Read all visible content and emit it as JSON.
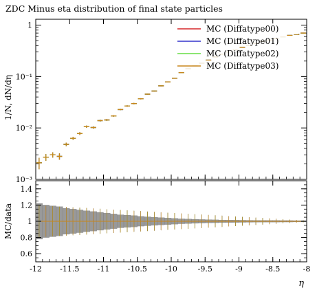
{
  "chart_data": {
    "type": "line",
    "title": "ZDC Minus eta distribution of final state particles",
    "top_panel": {
      "ylabel": "1/N, dN/dη",
      "yscale": "log",
      "ylim": [
        0.001,
        1.3
      ],
      "yticks": [
        {
          "value": 1,
          "label": "1"
        },
        {
          "value": 0.1,
          "label": "10⁻¹"
        },
        {
          "value": 0.01,
          "label": "10⁻²"
        },
        {
          "value": 0.001,
          "label": "10⁻³"
        }
      ]
    },
    "ratio_panel": {
      "ylabel": "MC/data",
      "ylim": [
        0.5,
        1.5
      ],
      "yticks": [
        {
          "value": 0.6,
          "label": "0.6"
        },
        {
          "value": 0.8,
          "label": "0.8"
        },
        {
          "value": 1.0,
          "label": "1"
        },
        {
          "value": 1.2,
          "label": "1.2"
        },
        {
          "value": 1.4,
          "label": "1.4"
        }
      ]
    },
    "xlabel": "η",
    "xlim": [
      -12,
      -8
    ],
    "xticks": [
      {
        "value": -12,
        "label": "-12"
      },
      {
        "value": -11.5,
        "label": "-11.5"
      },
      {
        "value": -11,
        "label": "-11"
      },
      {
        "value": -10.5,
        "label": "-10.5"
      },
      {
        "value": -10,
        "label": "-10"
      },
      {
        "value": -9.5,
        "label": "-9.5"
      },
      {
        "value": -9,
        "label": "-9"
      },
      {
        "value": -8.5,
        "label": "-8.5"
      },
      {
        "value": -8,
        "label": "-8"
      }
    ],
    "bin_width": 0.1,
    "x": [
      -11.95,
      -11.85,
      -11.75,
      -11.65,
      -11.55,
      -11.45,
      -11.35,
      -11.25,
      -11.15,
      -11.05,
      -10.95,
      -10.85,
      -10.75,
      -10.65,
      -10.55,
      -10.45,
      -10.35,
      -10.25,
      -10.15,
      -10.05,
      -9.95,
      -9.85,
      -9.75,
      -9.65,
      -9.55,
      -9.45,
      -9.35,
      -9.25,
      -9.15,
      -9.05,
      -8.95,
      -8.85,
      -8.75,
      -8.65,
      -8.55,
      -8.45,
      -8.35,
      -8.25,
      -8.15,
      -8.05
    ],
    "series": [
      {
        "name": "MC (Diffatype00)",
        "color": "#d62728",
        "values": [
          0.0021,
          0.0027,
          0.003,
          0.0028,
          0.0048,
          0.0063,
          0.0078,
          0.0106,
          0.0102,
          0.0139,
          0.0143,
          0.0171,
          0.0228,
          0.0267,
          0.0298,
          0.0369,
          0.0454,
          0.0522,
          0.0659,
          0.0786,
          0.0926,
          0.119,
          0.142,
          0.161,
          0.182,
          0.208,
          0.24,
          0.272,
          0.3,
          0.33,
          0.37,
          0.4,
          0.44,
          0.48,
          0.51,
          0.55,
          0.59,
          0.63,
          0.66,
          0.7
        ]
      },
      {
        "name": "MC (Diffatype01)",
        "color": "#3333cc",
        "values": [
          0.0021,
          0.0027,
          0.003,
          0.0028,
          0.0048,
          0.0063,
          0.0078,
          0.0106,
          0.0102,
          0.0139,
          0.0143,
          0.0171,
          0.0228,
          0.0267,
          0.0298,
          0.0369,
          0.0454,
          0.0522,
          0.0659,
          0.0786,
          0.0926,
          0.119,
          0.142,
          0.161,
          0.182,
          0.208,
          0.24,
          0.272,
          0.3,
          0.33,
          0.37,
          0.4,
          0.44,
          0.48,
          0.51,
          0.55,
          0.59,
          0.63,
          0.66,
          0.7
        ]
      },
      {
        "name": "MC (Diffatype02)",
        "color": "#66dd44",
        "values": [
          0.0021,
          0.0027,
          0.003,
          0.0028,
          0.0048,
          0.0063,
          0.0078,
          0.0106,
          0.0102,
          0.0139,
          0.0143,
          0.0171,
          0.0228,
          0.0267,
          0.0298,
          0.0369,
          0.0454,
          0.0522,
          0.0659,
          0.0786,
          0.0926,
          0.119,
          0.142,
          0.161,
          0.182,
          0.208,
          0.24,
          0.272,
          0.3,
          0.33,
          0.37,
          0.4,
          0.44,
          0.48,
          0.51,
          0.55,
          0.59,
          0.63,
          0.66,
          0.7
        ]
      },
      {
        "name": "MC (Diffatype03)",
        "color": "#c8861c",
        "values": [
          0.0021,
          0.0027,
          0.003,
          0.0028,
          0.0048,
          0.0063,
          0.0078,
          0.0106,
          0.0102,
          0.0139,
          0.0143,
          0.0171,
          0.0228,
          0.0267,
          0.0298,
          0.0369,
          0.0454,
          0.0522,
          0.0659,
          0.0786,
          0.0926,
          0.119,
          0.142,
          0.161,
          0.182,
          0.208,
          0.24,
          0.272,
          0.3,
          0.33,
          0.37,
          0.4,
          0.44,
          0.48,
          0.51,
          0.55,
          0.59,
          0.63,
          0.66,
          0.7
        ]
      }
    ],
    "vertical_error_relative": [
      0.25,
      0.15,
      0.12,
      0.14,
      0.08,
      0.07,
      0.06,
      0.05,
      0.05,
      0.04,
      0.04,
      0.03,
      0.03,
      0.03,
      0.03,
      0.025,
      0.02,
      0.02,
      0.02,
      0.02,
      0.015,
      0.015,
      0.015,
      0.01,
      0.01,
      0.01,
      0.01,
      0.01,
      0.01,
      0.01,
      0.01,
      0.01,
      0.01,
      0.01,
      0.01,
      0.01,
      0.01,
      0.01,
      0.01,
      0.01
    ],
    "ratio_band": {
      "center": 1.0,
      "halfwidth": [
        0.22,
        0.2,
        0.19,
        0.18,
        0.16,
        0.15,
        0.14,
        0.13,
        0.12,
        0.11,
        0.1,
        0.09,
        0.08,
        0.075,
        0.07,
        0.06,
        0.055,
        0.05,
        0.045,
        0.04,
        0.035,
        0.03,
        0.028,
        0.025,
        0.022,
        0.02,
        0.018,
        0.016,
        0.015,
        0.014,
        0.013,
        0.012,
        0.011,
        0.01,
        0.01,
        0.01,
        0.009,
        0.009,
        0.008,
        0.008
      ],
      "color": "#999999"
    },
    "legend_position": "top-right",
    "grid": false
  }
}
